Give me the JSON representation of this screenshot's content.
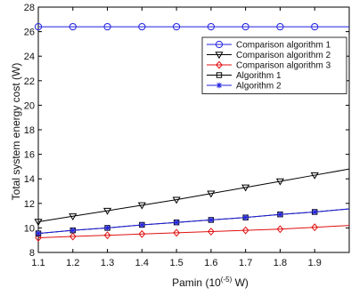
{
  "chart_data": {
    "type": "line",
    "title": "",
    "xlabel": "Pamin (10",
    "xlabel_exp": "(-5)",
    "xlabel_tail": " W)",
    "ylabel": "Total system energy cost (W)",
    "xlim": [
      1.1,
      2.0
    ],
    "ylim": [
      8,
      28
    ],
    "xticks": [
      1.1,
      1.2,
      1.3,
      1.4,
      1.5,
      1.6,
      1.7,
      1.8,
      1.9
    ],
    "xtick_labels": [
      "1.1",
      "1.2",
      "1.3",
      "1.4",
      "1.5",
      "1.6",
      "1.7",
      "1.8",
      "1.9"
    ],
    "yticks": [
      8,
      10,
      12,
      14,
      16,
      18,
      20,
      22,
      24,
      26,
      28
    ],
    "ytick_labels": [
      "8",
      "10",
      "12",
      "14",
      "16",
      "18",
      "20",
      "22",
      "24",
      "26",
      "28"
    ],
    "grid": false,
    "legend_position": "top-right",
    "series": [
      {
        "name": "Comparison algorithm 1",
        "color": "#1f1fe0",
        "marker": "circle",
        "x": [
          1.1,
          1.2,
          1.3,
          1.4,
          1.5,
          1.6,
          1.7,
          1.8,
          1.9,
          2.0
        ],
        "y": [
          26.4,
          26.4,
          26.4,
          26.4,
          26.4,
          26.4,
          26.4,
          26.4,
          26.4,
          26.4
        ]
      },
      {
        "name": "Comparison algorithm 2",
        "color": "#000000",
        "marker": "triangle-down",
        "x": [
          1.1,
          1.2,
          1.3,
          1.4,
          1.5,
          1.6,
          1.7,
          1.8,
          1.9,
          2.0
        ],
        "y": [
          10.5,
          10.95,
          11.4,
          11.85,
          12.3,
          12.8,
          13.3,
          13.8,
          14.3,
          14.8
        ]
      },
      {
        "name": "Comparison algorithm 3",
        "color": "#e01010",
        "marker": "diamond",
        "x": [
          1.1,
          1.2,
          1.3,
          1.4,
          1.5,
          1.6,
          1.7,
          1.8,
          1.9,
          2.0
        ],
        "y": [
          9.2,
          9.3,
          9.4,
          9.5,
          9.6,
          9.7,
          9.8,
          9.9,
          10.05,
          10.2
        ]
      },
      {
        "name": "Algorithm 1",
        "color": "#000000",
        "marker": "square",
        "x": [
          1.1,
          1.2,
          1.3,
          1.4,
          1.5,
          1.6,
          1.7,
          1.8,
          1.9,
          2.0
        ],
        "y": [
          9.55,
          9.8,
          10.0,
          10.25,
          10.45,
          10.65,
          10.85,
          11.1,
          11.3,
          11.55
        ]
      },
      {
        "name": "Algorithm 2",
        "color": "#1f1fe0",
        "marker": "asterisk",
        "x": [
          1.1,
          1.2,
          1.3,
          1.4,
          1.5,
          1.6,
          1.7,
          1.8,
          1.9,
          2.0
        ],
        "y": [
          9.55,
          9.8,
          10.0,
          10.25,
          10.45,
          10.65,
          10.85,
          11.1,
          11.3,
          11.55
        ]
      }
    ]
  }
}
